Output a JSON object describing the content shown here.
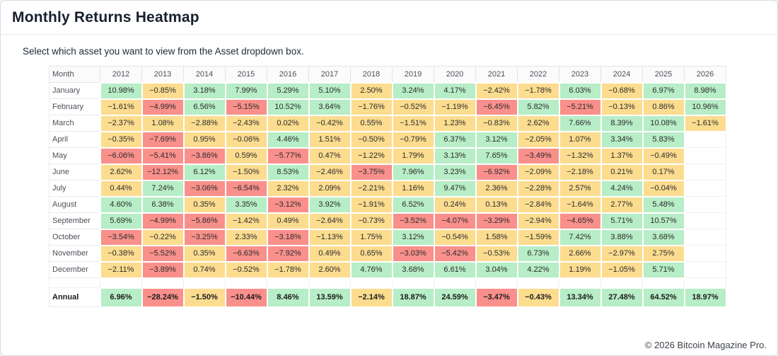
{
  "page": {
    "title": "Monthly Returns Heatmap",
    "subtitle": "Select which asset you want to view from the Asset dropdown box.",
    "footer": "© 2026 Bitcoin Magazine Pro."
  },
  "colors": {
    "positive_green": "#b7edc7",
    "neutral_yellow": "#fcdc8f",
    "negative_red": "#f9908b",
    "empty_white": "#ffffff",
    "green_threshold": 3,
    "red_threshold": -3
  },
  "chart_data": {
    "type": "heatmap",
    "title": "Monthly Returns Heatmap",
    "value_unit": "%",
    "legend": "none",
    "color_rule": "value >= 3 green, value <= -3 red, otherwise yellow, null empty",
    "columns": [
      "Month",
      "2012",
      "2013",
      "2014",
      "2015",
      "2016",
      "2017",
      "2018",
      "2019",
      "2020",
      "2021",
      "2022",
      "2023",
      "2024",
      "2025",
      "2026"
    ],
    "rows": [
      {
        "label": "January",
        "values": [
          10.98,
          -0.85,
          3.18,
          7.99,
          5.29,
          5.1,
          2.5,
          3.24,
          4.17,
          -2.42,
          -1.78,
          6.03,
          -0.68,
          6.97,
          8.98
        ]
      },
      {
        "label": "February",
        "values": [
          -1.61,
          -4.99,
          6.56,
          -5.15,
          10.52,
          3.64,
          -1.76,
          -0.52,
          -1.19,
          -6.45,
          5.82,
          -5.21,
          -0.13,
          0.86,
          10.96
        ]
      },
      {
        "label": "March",
        "values": [
          -2.37,
          1.08,
          -2.88,
          -2.43,
          0.02,
          -0.42,
          0.55,
          -1.51,
          1.23,
          -0.83,
          2.62,
          7.66,
          8.39,
          10.08,
          -1.61
        ]
      },
      {
        "label": "April",
        "values": [
          -0.35,
          -7.69,
          0.95,
          -0.06,
          4.46,
          1.51,
          -0.5,
          -0.79,
          6.37,
          3.12,
          -2.05,
          1.07,
          3.34,
          5.83,
          null
        ]
      },
      {
        "label": "May",
        "values": [
          -6.06,
          -5.41,
          -3.86,
          0.59,
          -5.77,
          0.47,
          -1.22,
          1.79,
          3.13,
          7.65,
          -3.49,
          -1.32,
          1.37,
          -0.49,
          null
        ]
      },
      {
        "label": "June",
        "values": [
          2.62,
          -12.12,
          6.12,
          -1.5,
          8.53,
          -2.46,
          -3.75,
          7.96,
          3.23,
          -6.92,
          -2.09,
          -2.18,
          0.21,
          0.17,
          null
        ]
      },
      {
        "label": "July",
        "values": [
          0.44,
          7.24,
          -3.06,
          -6.54,
          2.32,
          2.09,
          -2.21,
          1.16,
          9.47,
          2.36,
          -2.28,
          2.57,
          4.24,
          -0.04,
          null
        ]
      },
      {
        "label": "August",
        "values": [
          4.6,
          6.38,
          0.35,
          3.35,
          -3.12,
          3.92,
          -1.91,
          6.52,
          0.24,
          0.13,
          -2.84,
          -1.64,
          2.77,
          5.48,
          null
        ]
      },
      {
        "label": "September",
        "values": [
          5.69,
          -4.99,
          -5.86,
          -1.42,
          0.49,
          -2.64,
          -0.73,
          -3.52,
          -4.07,
          -3.29,
          -2.94,
          -4.65,
          5.71,
          10.57,
          null
        ]
      },
      {
        "label": "October",
        "values": [
          -3.54,
          -0.22,
          -3.25,
          2.33,
          -3.18,
          -1.13,
          1.75,
          3.12,
          -0.54,
          1.58,
          -1.59,
          7.42,
          3.88,
          3.68,
          null
        ]
      },
      {
        "label": "November",
        "values": [
          -0.38,
          -5.52,
          0.35,
          -6.63,
          -7.92,
          0.49,
          0.65,
          -3.03,
          -5.42,
          -0.53,
          6.73,
          2.66,
          -2.97,
          2.75,
          null
        ]
      },
      {
        "label": "December",
        "values": [
          -2.11,
          -3.89,
          0.74,
          -0.52,
          -1.78,
          2.6,
          4.76,
          3.68,
          6.61,
          3.04,
          4.22,
          1.19,
          -1.05,
          5.71,
          null
        ]
      }
    ],
    "annual": {
      "label": "Annual",
      "values": [
        6.96,
        -28.24,
        -1.5,
        -10.44,
        8.46,
        13.59,
        -2.14,
        18.87,
        24.59,
        -3.47,
        -0.43,
        13.34,
        27.48,
        64.52,
        18.97
      ]
    }
  }
}
